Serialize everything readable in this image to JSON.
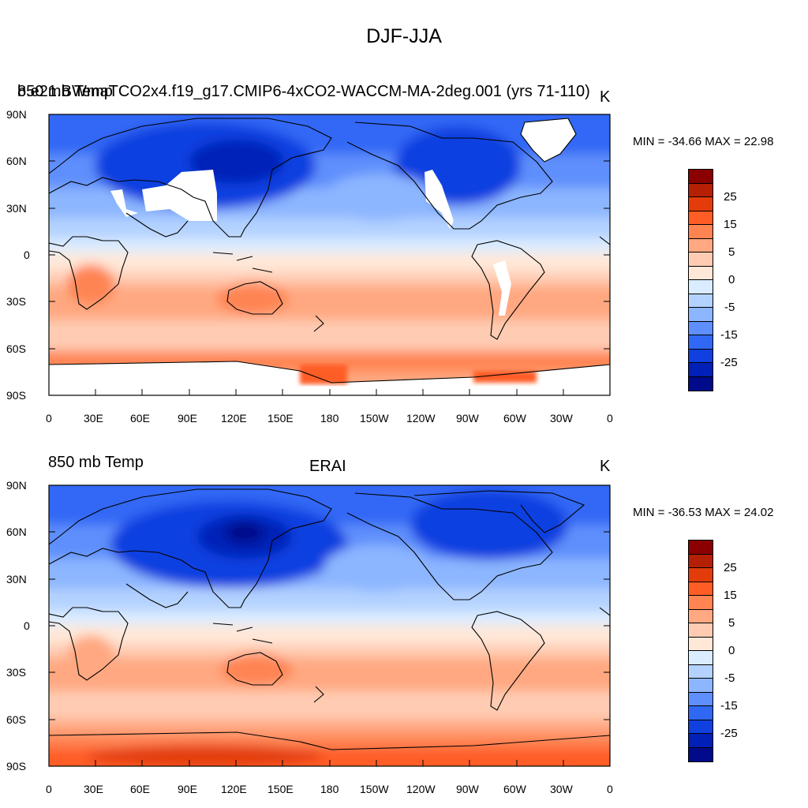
{
  "figure": {
    "title": "DJF-JJA"
  },
  "panels": [
    {
      "id": "model",
      "left_label": "850 mb Temp",
      "left_label_overlap": "b.e21.BWmaTCO2x4.f19_g17.CMIP6-4xCO2-WACCM-MA-2deg.001 (yrs 71-110)",
      "center_label": "",
      "units": "K",
      "min_label": "MIN = -34.66",
      "max_label": "MAX =  22.98",
      "missing_regions": [
        "Greenland",
        "Tibetan Plateau",
        "Rocky Mountains",
        "Andes",
        "Antarctica"
      ]
    },
    {
      "id": "obs",
      "left_label": "850 mb Temp",
      "center_label": "ERAI",
      "units": "K",
      "min_label": "MIN = -36.53",
      "max_label": "MAX =  24.02",
      "missing_regions": []
    }
  ],
  "axes": {
    "lat_ticks": [
      "90N",
      "60N",
      "30N",
      "0",
      "30S",
      "60S",
      "90S"
    ],
    "lon_ticks": [
      "0",
      "30E",
      "60E",
      "90E",
      "120E",
      "150E",
      "180",
      "150W",
      "120W",
      "90W",
      "60W",
      "30W",
      "0"
    ],
    "lat_range": [
      -90,
      90
    ],
    "lon_range": [
      0,
      360
    ]
  },
  "colorbar": {
    "labels": [
      "25",
      "15",
      "5",
      "0",
      "-5",
      "-15",
      "-25"
    ],
    "colors": [
      "#8b0000",
      "#b52005",
      "#e33c0a",
      "#ff5d25",
      "#ff8452",
      "#ffa881",
      "#ffccb3",
      "#ffe8d8",
      "#daecff",
      "#b4d2ff",
      "#8cb6ff",
      "#5f8ffc",
      "#3068f5",
      "#1040e0",
      "#0020b8",
      "#000a8a"
    ]
  },
  "chart_data": {
    "type": "map",
    "variable": "850 mb Temp",
    "season_difference": "DJF-JJA",
    "units": "K",
    "panels": [
      {
        "name": "b.e21.BWmaTCO2x4.f19_g17.CMIP6-4xCO2-WACCM-MA-2deg.001 (yrs 71-110)",
        "min": -34.66,
        "max": 22.98
      },
      {
        "name": "ERAI",
        "min": -36.53,
        "max": 24.02
      }
    ],
    "contour_levels": [
      -35,
      -30,
      -25,
      -20,
      -15,
      -10,
      -5,
      -2.5,
      2.5,
      5,
      10,
      15,
      20,
      25,
      30
    ],
    "colorbar_labels": [
      25,
      15,
      5,
      0,
      -5,
      -15,
      -25
    ]
  }
}
